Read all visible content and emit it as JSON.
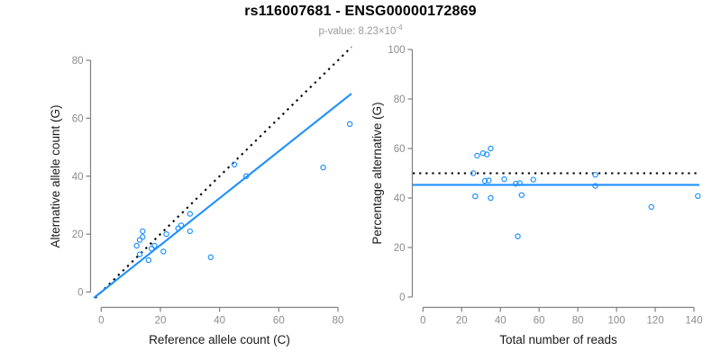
{
  "header": {
    "title": "rs116007681 - ENSG00000172869",
    "subtitle_prefix": "p-value: 8.23×10",
    "subtitle_exponent": "-4"
  },
  "colors": {
    "accent_blue": "#1E90FF",
    "line_black": "#000000",
    "axis_line_gray": "#808080",
    "tick_label_gray": "#8C8C8C",
    "axis_title_black": "#1A1A1A",
    "subtitle_gray": "#9A9A9A"
  },
  "chart_data": [
    {
      "id": "allele-counts-scatter",
      "type": "scatter",
      "title": "",
      "xlabel": "Reference allele count (C)",
      "ylabel": "Alternative allele count (G)",
      "xlim": [
        0,
        80
      ],
      "ylim": [
        0,
        80
      ],
      "xticks": [
        0,
        20,
        40,
        60,
        80
      ],
      "yticks": [
        0,
        20,
        40,
        60,
        80
      ],
      "grid": false,
      "legend": null,
      "marker": "open-circle",
      "points": [
        [
          13,
          13
        ],
        [
          16,
          11
        ],
        [
          12,
          16
        ],
        [
          13,
          18
        ],
        [
          14,
          19
        ],
        [
          17,
          15
        ],
        [
          18,
          16
        ],
        [
          21,
          14
        ],
        [
          14,
          21
        ],
        [
          22,
          20
        ],
        [
          26,
          22
        ],
        [
          27,
          23
        ],
        [
          30,
          21
        ],
        [
          30,
          27
        ],
        [
          37,
          12
        ],
        [
          45,
          44
        ],
        [
          49,
          40
        ],
        [
          75,
          43
        ],
        [
          84,
          58
        ]
      ],
      "lines": [
        {
          "name": "identity-line",
          "slope": 1,
          "intercept": 0,
          "style": "dotted",
          "color": "#000000"
        },
        {
          "name": "fit-line",
          "slope": 0.81,
          "intercept": 0,
          "style": "solid",
          "color": "#1E90FF"
        }
      ]
    },
    {
      "id": "percentage-vs-reads-scatter",
      "type": "scatter",
      "title": "",
      "xlabel": "Total number of reads",
      "ylabel": "Percentage alternative (G)",
      "xlim": [
        0,
        140
      ],
      "ylim": [
        0,
        100
      ],
      "xticks": [
        0,
        20,
        40,
        60,
        80,
        100,
        120,
        140
      ],
      "yticks": [
        0,
        20,
        40,
        60,
        80,
        100
      ],
      "grid": false,
      "legend": null,
      "marker": "open-circle",
      "points": [
        [
          26,
          50.0
        ],
        [
          27,
          40.7
        ],
        [
          28,
          57.1
        ],
        [
          31,
          58.1
        ],
        [
          33,
          57.6
        ],
        [
          32,
          46.9
        ],
        [
          34,
          47.1
        ],
        [
          35,
          40.0
        ],
        [
          35,
          60.0
        ],
        [
          42,
          47.6
        ],
        [
          48,
          45.8
        ],
        [
          50,
          46.0
        ],
        [
          51,
          41.2
        ],
        [
          57,
          47.4
        ],
        [
          49,
          24.5
        ],
        [
          89,
          49.4
        ],
        [
          89,
          44.9
        ],
        [
          118,
          36.4
        ],
        [
          142,
          40.8
        ]
      ],
      "lines": [
        {
          "name": "expected-50pct-line",
          "slope": 0,
          "intercept": 50,
          "style": "dotted",
          "color": "#000000"
        },
        {
          "name": "mean-percentage-line",
          "slope": 0,
          "intercept": 45.3,
          "style": "solid",
          "color": "#1E90FF"
        }
      ]
    }
  ]
}
